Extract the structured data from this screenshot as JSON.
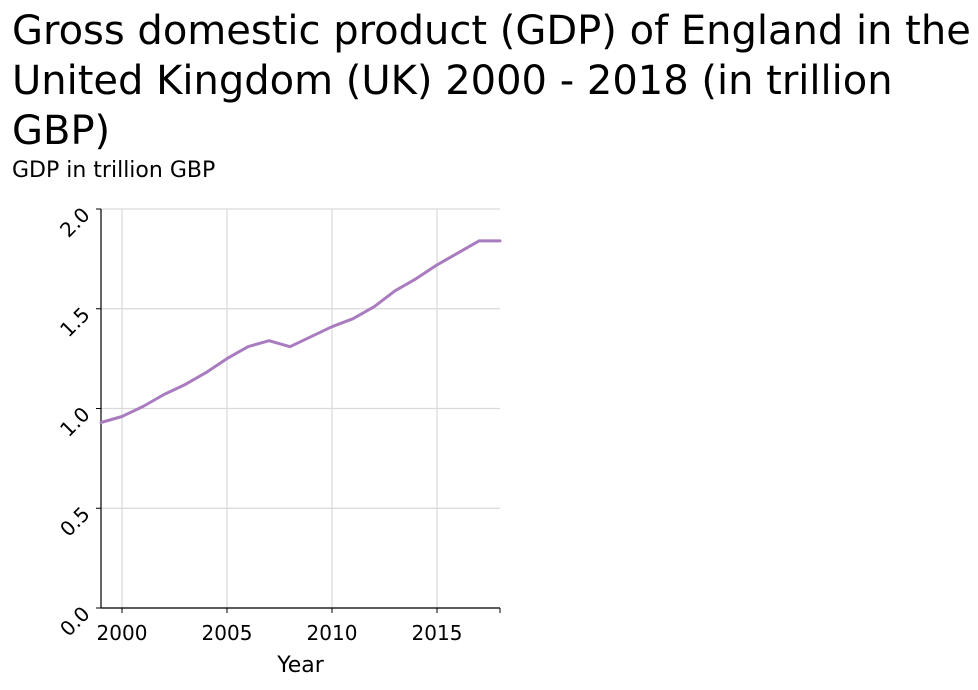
{
  "chart_data": {
    "type": "line",
    "title": "Gross domestic product (GDP) of England in the United Kingdom (UK) 2000 - 2018 (in trillion GBP)",
    "ylabel": "GDP in trillion GBP",
    "xlabel": "Year",
    "xlim": [
      1999,
      2018
    ],
    "ylim": [
      0.0,
      2.0
    ],
    "x_ticks": [
      2000,
      2005,
      2010,
      2015
    ],
    "y_ticks": [
      "0.0",
      "0.5",
      "1.0",
      "1.5",
      "2.0"
    ],
    "grid": true,
    "line_color": "#a97cbf",
    "series": [
      {
        "x": [
          1999,
          2000,
          2001,
          2002,
          2003,
          2004,
          2005,
          2006,
          2007,
          2008,
          2009,
          2010,
          2011,
          2012,
          2013,
          2014,
          2015,
          2016,
          2017,
          2018
        ],
        "values": [
          0.93,
          0.96,
          1.01,
          1.07,
          1.12,
          1.18,
          1.25,
          1.31,
          1.34,
          1.31,
          1.36,
          1.41,
          1.45,
          1.51,
          1.59,
          1.65,
          1.72,
          1.78,
          1.84,
          1.84
        ]
      }
    ]
  }
}
